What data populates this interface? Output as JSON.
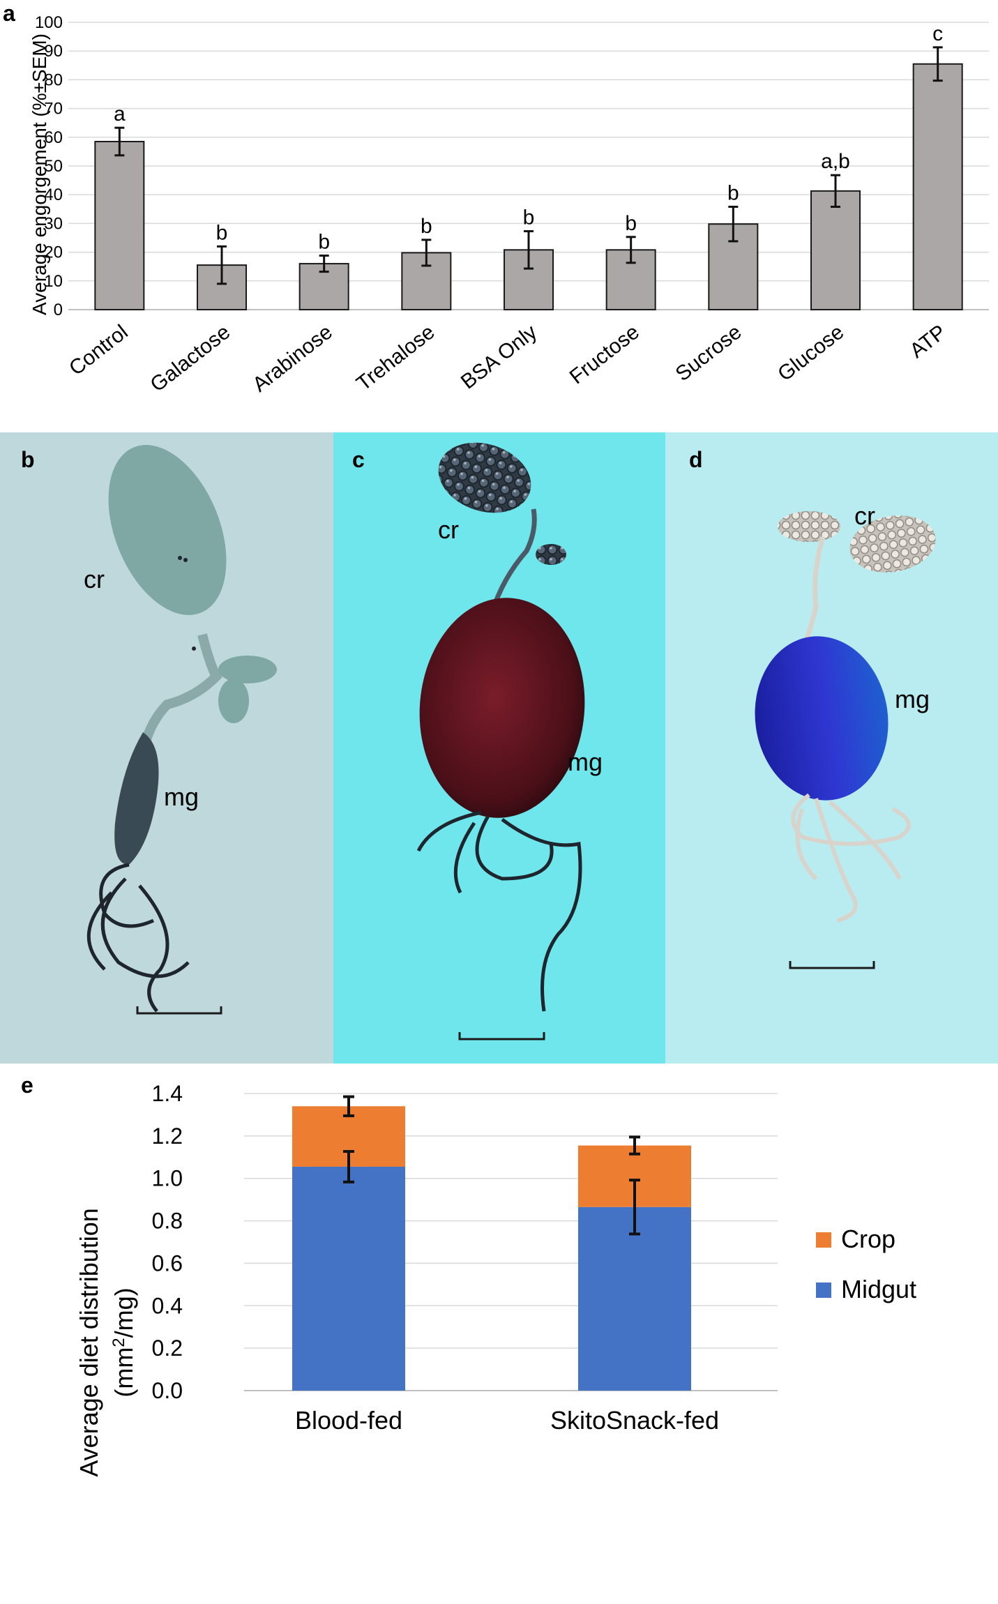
{
  "figure": {
    "panel_labels": [
      "a",
      "b",
      "c",
      "d",
      "e"
    ]
  },
  "chart_data": [
    {
      "id": "a",
      "type": "bar",
      "title": "",
      "xlabel": "",
      "ylabel": "Average engorgement (%±SEM)",
      "ylim": [
        0,
        100
      ],
      "yticks": [
        0,
        10,
        20,
        30,
        40,
        50,
        60,
        70,
        80,
        90,
        100
      ],
      "grid": true,
      "categories": [
        "Control",
        "Galactose",
        "Arabinose",
        "Trehalose",
        "BSA Only",
        "Fructose",
        "Sucrose",
        "Glucose",
        "ATP"
      ],
      "values": [
        58.5,
        15.5,
        16,
        19.8,
        20.8,
        20.8,
        29.8,
        41.3,
        85.5
      ],
      "errors": [
        4.8,
        6.5,
        2.8,
        4.5,
        6.5,
        4.5,
        6,
        5.5,
        5.8
      ],
      "significance_letters": [
        "a",
        "b",
        "b",
        "b",
        "b",
        "b",
        "b",
        "a,b",
        "c"
      ],
      "colors": {
        "bar": "#aba7a6",
        "bar_edge": "#1a1a1a",
        "grid": "#d9d9d9"
      }
    },
    {
      "id": "e",
      "type": "bar",
      "stacked": true,
      "title": "",
      "xlabel": "",
      "ylabel_line1": "Average diet distribution",
      "ylabel_line2": "(mm²/mg)",
      "ylim": [
        0,
        1.4
      ],
      "yticks": [
        "0.0",
        "0.2",
        "0.4",
        "0.6",
        "0.8",
        "1.0",
        "1.2",
        "1.4"
      ],
      "grid": true,
      "categories": [
        "Blood-fed",
        "SkitoSnack-fed"
      ],
      "series": [
        {
          "name": "Midgut",
          "values": [
            1.055,
            0.865
          ],
          "errors": [
            0.072,
            0.127
          ],
          "color": "#4472c4"
        },
        {
          "name": "Crop",
          "values": [
            0.285,
            0.29
          ],
          "errors": [
            0.045,
            0.04
          ],
          "color": "#ed7d31"
        }
      ],
      "legend_position": "right",
      "legend_order": [
        "Crop",
        "Midgut"
      ]
    }
  ],
  "photos": [
    {
      "id": "b",
      "labels": [
        "cr",
        "mg"
      ],
      "background": "#bfd8dc",
      "crop_color": "#7fa7a3",
      "midgut_color": "#3a4a55"
    },
    {
      "id": "c",
      "labels": [
        "cr",
        "mg"
      ],
      "background": "#6fe6ec",
      "crop_color": "#37414a",
      "midgut_color": "#5a1520"
    },
    {
      "id": "d",
      "labels": [
        "cr",
        "mg"
      ],
      "background": "#b8ecf0",
      "crop_color": "#e0ddd6",
      "midgut_color": "#2b33c8"
    }
  ]
}
